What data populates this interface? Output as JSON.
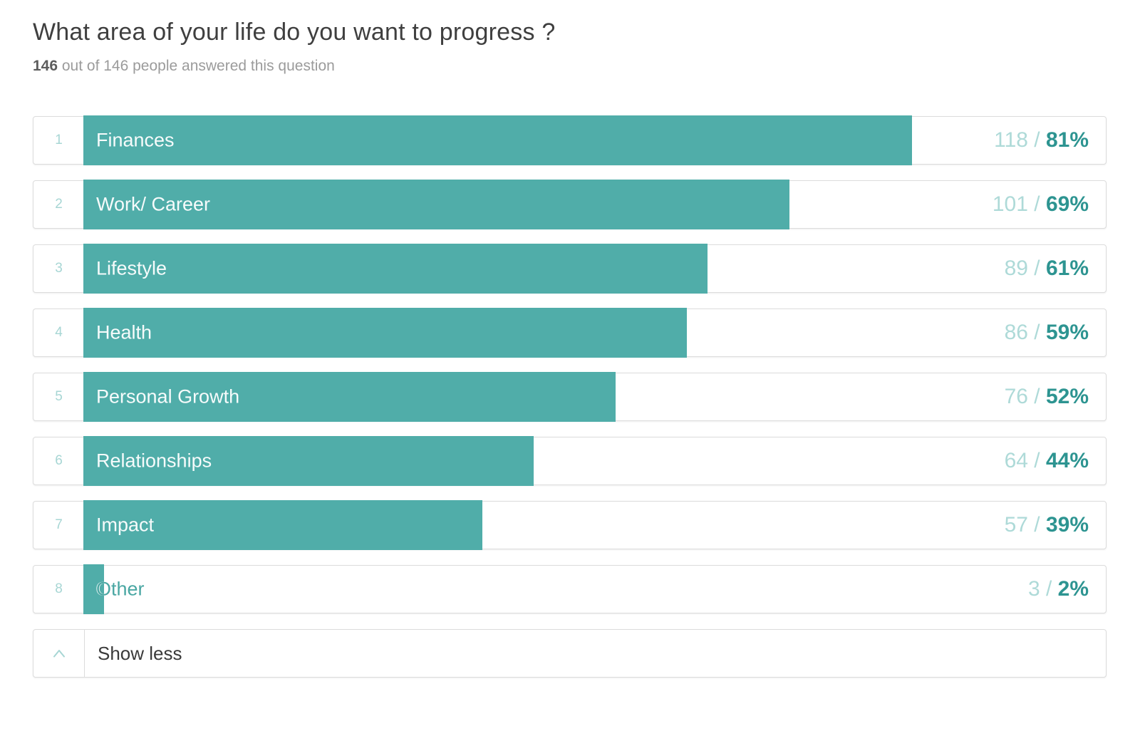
{
  "page": {
    "title": "What area of your life do you want to progress ?",
    "subtitle_bold": "146",
    "subtitle_rest": " out of 146 people answered this question"
  },
  "chart_data": {
    "type": "bar",
    "orientation": "horizontal",
    "title": "What area of your life do you want to progress ?",
    "subtitle": "146 out of 146 people answered this question",
    "answered": 146,
    "total_people": 146,
    "categories": [
      "Finances",
      "Work/ Career",
      "Lifestyle",
      "Health",
      "Personal Growth",
      "Relationships",
      "Impact",
      "Other"
    ],
    "series": [
      {
        "name": "responses",
        "values": [
          118,
          101,
          89,
          86,
          76,
          64,
          57,
          3
        ]
      },
      {
        "name": "percent",
        "values": [
          81,
          69,
          61,
          59,
          52,
          44,
          39,
          2
        ]
      }
    ],
    "xlim": [
      0,
      100
    ],
    "grid": false,
    "legend": "none",
    "bar_scale": "percent-of-track-width"
  },
  "ui": {
    "value_separator": " / ",
    "percent_suffix": "%"
  },
  "footer": {
    "toggle_label": "Show less",
    "icon": "chevron-up"
  },
  "colors": {
    "bar_fill": "#50ada9",
    "accent_light": "#a7d6d4",
    "accent_dark": "#2d9491",
    "outside_label": "#4aa7a3",
    "row_border": "#dcdcdc",
    "title_text": "#3f3f3f",
    "subtitle_text": "#9b9b9b",
    "subtitle_bold_text": "#5c5c5c",
    "show_less_text": "#3a3a3a",
    "background": "#ffffff"
  }
}
